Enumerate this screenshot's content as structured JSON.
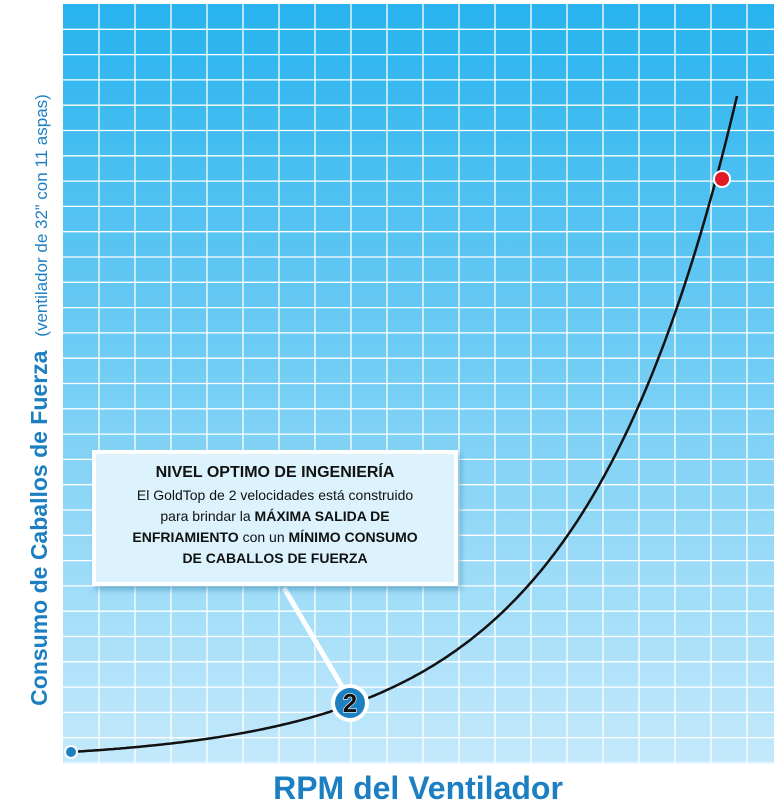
{
  "chart_data": {
    "type": "line",
    "xlabel": "RPM del Ventilador",
    "ylabel_bold": "Consumo de Caballos de Fuerza",
    "ylabel_normal": "(ventilador de 32” con 11 aspas)",
    "grid": true,
    "curve": "exponential",
    "markers": [
      {
        "label": "",
        "color": "#1b7fc1"
      },
      {
        "label": "2",
        "color": "#1b7fc1"
      },
      {
        "label": "",
        "color": "#e01b24"
      }
    ]
  },
  "callout": {
    "title": "NIVEL OPTIMO DE INGENIERÍA",
    "lines": [
      [
        {
          "t": "El GoldTop de 2 velocidades está construido",
          "b": false
        }
      ],
      [
        {
          "t": "para brindar la ",
          "b": false
        },
        {
          "t": "MÁXIMA SALIDA DE",
          "b": true
        }
      ],
      [
        {
          "t": "ENFRIAMIENTO",
          "b": true
        },
        {
          "t": " con un ",
          "b": false
        },
        {
          "t": "MÍNIMO CONSUMO",
          "b": true
        }
      ],
      [
        {
          "t": "DE CABALLOS DE FUERZA",
          "b": true
        }
      ]
    ]
  },
  "colors": {
    "plot_top": "#27b3ee",
    "plot_bottom": "#c4e9fb",
    "grid": "#ffffff",
    "axis_label": "#1b7fc1",
    "curve": "#111111",
    "callout_bg": "#dcf2fd",
    "callout_border": "#ffffff"
  }
}
